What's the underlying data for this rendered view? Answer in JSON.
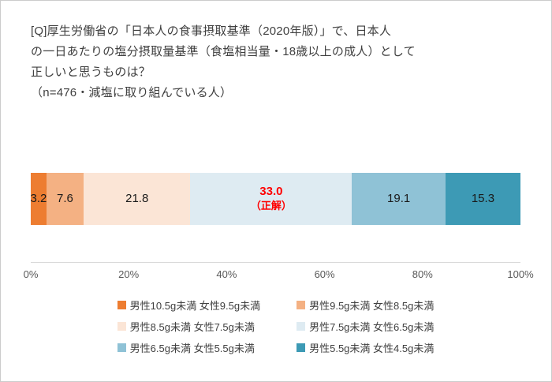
{
  "title": {
    "lines": [
      "[Q]厚生労働省の「日本人の食事摂取基準（2020年版）」で、日本人",
      "の一日あたりの塩分摂取量基準（食塩相当量・18歳以上の成人）として",
      "正しいと思うものは？",
      "（n=476・減塩に取り組んでいる人）"
    ]
  },
  "chart_data": {
    "type": "bar",
    "stacked": true,
    "orientation": "horizontal",
    "title": "[Q]厚生労働省の「日本人の食事摂取基準（2020年版）」で、日本人の一日あたりの塩分摂取量基準（食塩相当量・18歳以上の成人）として正しいと思うものは？",
    "subtitle": "（n=476・減塩に取り組んでいる人）",
    "sample_note": "n=476・減塩に取り組んでいる人",
    "categories": [
      "男性10.5g未満 女性9.5g未満",
      "男性9.5g未満 女性8.5g未満",
      "男性8.5g未満 女性7.5g未満",
      "男性7.5g未満 女性6.5g未満",
      "男性6.5g未満 女性5.5g未満",
      "男性5.5g未満 女性4.5g未満"
    ],
    "values": [
      3.2,
      7.6,
      21.8,
      33.0,
      19.1,
      15.3
    ],
    "value_labels": [
      "3.2",
      "7.6",
      "21.8",
      "33.0",
      "19.1",
      "15.3"
    ],
    "correct_index": 3,
    "correct_annotation": "（正解）",
    "colors": [
      "#ED7D31",
      "#F4B183",
      "#FBE5D6",
      "#DEEBF2",
      "#8FC2D6",
      "#3D9AB5"
    ],
    "highlight_color": "#FF0000",
    "x_ticks": [
      {
        "label": "0%",
        "value": 0
      },
      {
        "label": "20%",
        "value": 20
      },
      {
        "label": "40%",
        "value": 40
      },
      {
        "label": "60%",
        "value": 60
      },
      {
        "label": "80%",
        "value": 80
      },
      {
        "label": "100%",
        "value": 100
      }
    ],
    "xlim": [
      0,
      100
    ],
    "grid": false,
    "legend_position": "bottom"
  }
}
